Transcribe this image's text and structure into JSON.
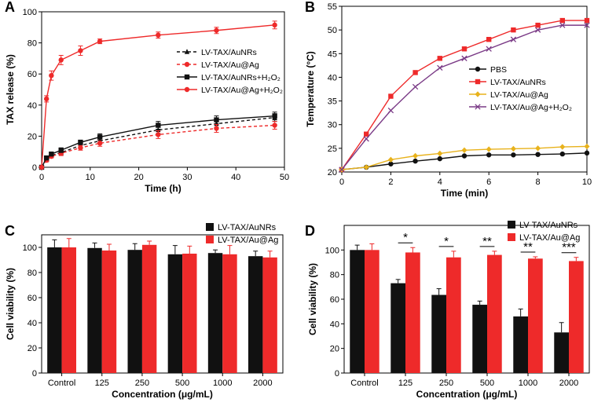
{
  "colors": {
    "red": "#ee2a2a",
    "black": "#111111",
    "gold": "#e8b21c",
    "purple": "#7a3a86",
    "grid": "#000000"
  },
  "chart_data": [
    {
      "id": "A",
      "panel_label": "A",
      "type": "line",
      "xlabel": "Time (h)",
      "ylabel": "TAX release (%)",
      "xlim": [
        0,
        50
      ],
      "ylim": [
        0,
        100
      ],
      "xticks": [
        0,
        10,
        20,
        30,
        40,
        50
      ],
      "yticks": [
        0,
        20,
        40,
        60,
        80,
        100
      ],
      "series": [
        {
          "name": "LV-TAX/AuNRs",
          "style": "dash",
          "color": "#111111",
          "marker": "triangle",
          "x": [
            0,
            1,
            2,
            4,
            8,
            12,
            24,
            36,
            48
          ],
          "y": [
            0,
            5,
            7.5,
            9.5,
            14,
            17,
            24,
            28,
            32
          ],
          "err": [
            0,
            1,
            1,
            1.5,
            1.5,
            2,
            2.5,
            2.5,
            2.5
          ]
        },
        {
          "name": "LV-TAX/Au@Ag",
          "style": "dash",
          "color": "#ee2a2a",
          "marker": "circle",
          "x": [
            0,
            1,
            2,
            4,
            8,
            12,
            24,
            36,
            48
          ],
          "y": [
            0,
            4.5,
            7,
            9,
            12.5,
            15.5,
            21,
            25,
            27
          ],
          "err": [
            0,
            1,
            1,
            1.5,
            1.5,
            2,
            2.5,
            2.5,
            2.5
          ]
        },
        {
          "name": "LV-TAX/AuNRs+H₂O₂",
          "style": "solid",
          "color": "#111111",
          "marker": "square",
          "x": [
            0,
            1,
            2,
            4,
            8,
            12,
            24,
            36,
            48
          ],
          "y": [
            0,
            6,
            8.5,
            11,
            16,
            19.5,
            27,
            30.5,
            33
          ],
          "err": [
            0,
            1,
            1,
            1.5,
            1.5,
            2,
            2.5,
            2.5,
            2.5
          ]
        },
        {
          "name": "LV-TAX/Au@Ag+H₂O₂",
          "style": "solid",
          "color": "#ee2a2a",
          "marker": "circle",
          "x": [
            0,
            1,
            2,
            4,
            8,
            12,
            24,
            36,
            48
          ],
          "y": [
            0,
            44,
            59,
            69,
            75,
            81,
            85,
            88,
            91.5
          ],
          "err": [
            0,
            2,
            3,
            3,
            3,
            1.5,
            2,
            2,
            2.5
          ]
        }
      ]
    },
    {
      "id": "B",
      "panel_label": "B",
      "type": "line",
      "xlabel": "Time (min)",
      "ylabel": "Temperature (°C)",
      "xlim": [
        0,
        10
      ],
      "ylim": [
        20,
        55
      ],
      "xticks": [
        0,
        2,
        4,
        6,
        8,
        10
      ],
      "yticks": [
        20,
        25,
        30,
        35,
        40,
        45,
        50,
        55
      ],
      "series": [
        {
          "name": "PBS",
          "color": "#111111",
          "marker": "circle",
          "x": [
            0,
            1,
            2,
            3,
            4,
            5,
            6,
            7,
            8,
            9,
            10
          ],
          "y": [
            20.5,
            21,
            21.7,
            22.3,
            22.8,
            23.4,
            23.6,
            23.6,
            23.7,
            23.8,
            24
          ]
        },
        {
          "name": "LV-TAX/AuNRs",
          "color": "#ee2a2a",
          "marker": "square",
          "x": [
            0,
            1,
            2,
            3,
            4,
            5,
            6,
            7,
            8,
            9,
            10
          ],
          "y": [
            20.5,
            28,
            36,
            41,
            44,
            46,
            48,
            50,
            51,
            52,
            52
          ]
        },
        {
          "name": "LV-TAX/Au@Ag",
          "color": "#e8b21c",
          "marker": "diamond",
          "x": [
            0,
            1,
            2,
            3,
            4,
            5,
            6,
            7,
            8,
            9,
            10
          ],
          "y": [
            20.5,
            21,
            22.6,
            23.4,
            23.9,
            24.6,
            24.8,
            24.9,
            25,
            25.3,
            25.4
          ]
        },
        {
          "name": "LV-TAX/Au@Ag+H₂O₂",
          "color": "#7a3a86",
          "marker": "x",
          "x": [
            0,
            1,
            2,
            3,
            4,
            5,
            6,
            7,
            8,
            9,
            10
          ],
          "y": [
            20.5,
            27,
            33,
            38,
            42,
            44,
            46,
            48,
            50,
            51,
            51
          ]
        }
      ]
    },
    {
      "id": "C",
      "panel_label": "C",
      "type": "bar",
      "xlabel": "Concentration (μg/mL)",
      "ylabel": "Cell viability (%)",
      "ylim": [
        0,
        110
      ],
      "yticks": [
        0,
        20,
        40,
        60,
        80,
        100
      ],
      "categories": [
        "Control",
        "125",
        "250",
        "500",
        "1000",
        "2000"
      ],
      "series": [
        {
          "name": "LV-TAX/AuNRs",
          "color": "#111111",
          "values": [
            100,
            99.5,
            98,
            94.5,
            95.5,
            93
          ],
          "err": [
            6,
            4,
            5,
            7,
            2.5,
            4
          ]
        },
        {
          "name": "LV-TAX/Au@Ag",
          "color": "#ee2a2a",
          "values": [
            100,
            97.5,
            102,
            95,
            94.5,
            92
          ],
          "err": [
            7,
            5,
            3,
            6,
            7,
            5
          ]
        }
      ],
      "significance": []
    },
    {
      "id": "D",
      "panel_label": "D",
      "type": "bar",
      "xlabel": "Concentration (μg/mL)",
      "ylabel": "Cell viability (%)",
      "ylim": [
        0,
        120
      ],
      "yticks": [
        0,
        20,
        40,
        60,
        80,
        100
      ],
      "categories": [
        "Control",
        "125",
        "250",
        "500",
        "1000",
        "2000"
      ],
      "series": [
        {
          "name": "LV-TAX/AuNRs",
          "color": "#111111",
          "values": [
            100,
            73,
            63.5,
            55.5,
            46,
            33
          ],
          "err": [
            4,
            3,
            5,
            3,
            6,
            8
          ]
        },
        {
          "name": "LV-TAX/Au@Ag",
          "color": "#ee2a2a",
          "values": [
            100,
            98,
            94,
            96,
            93,
            91
          ],
          "err": [
            5,
            4,
            5,
            3,
            1.5,
            3
          ]
        }
      ],
      "significance": [
        {
          "category": "125",
          "label": "*"
        },
        {
          "category": "250",
          "label": "*"
        },
        {
          "category": "500",
          "label": "**"
        },
        {
          "category": "1000",
          "label": "**"
        },
        {
          "category": "2000",
          "label": "***"
        }
      ]
    }
  ]
}
